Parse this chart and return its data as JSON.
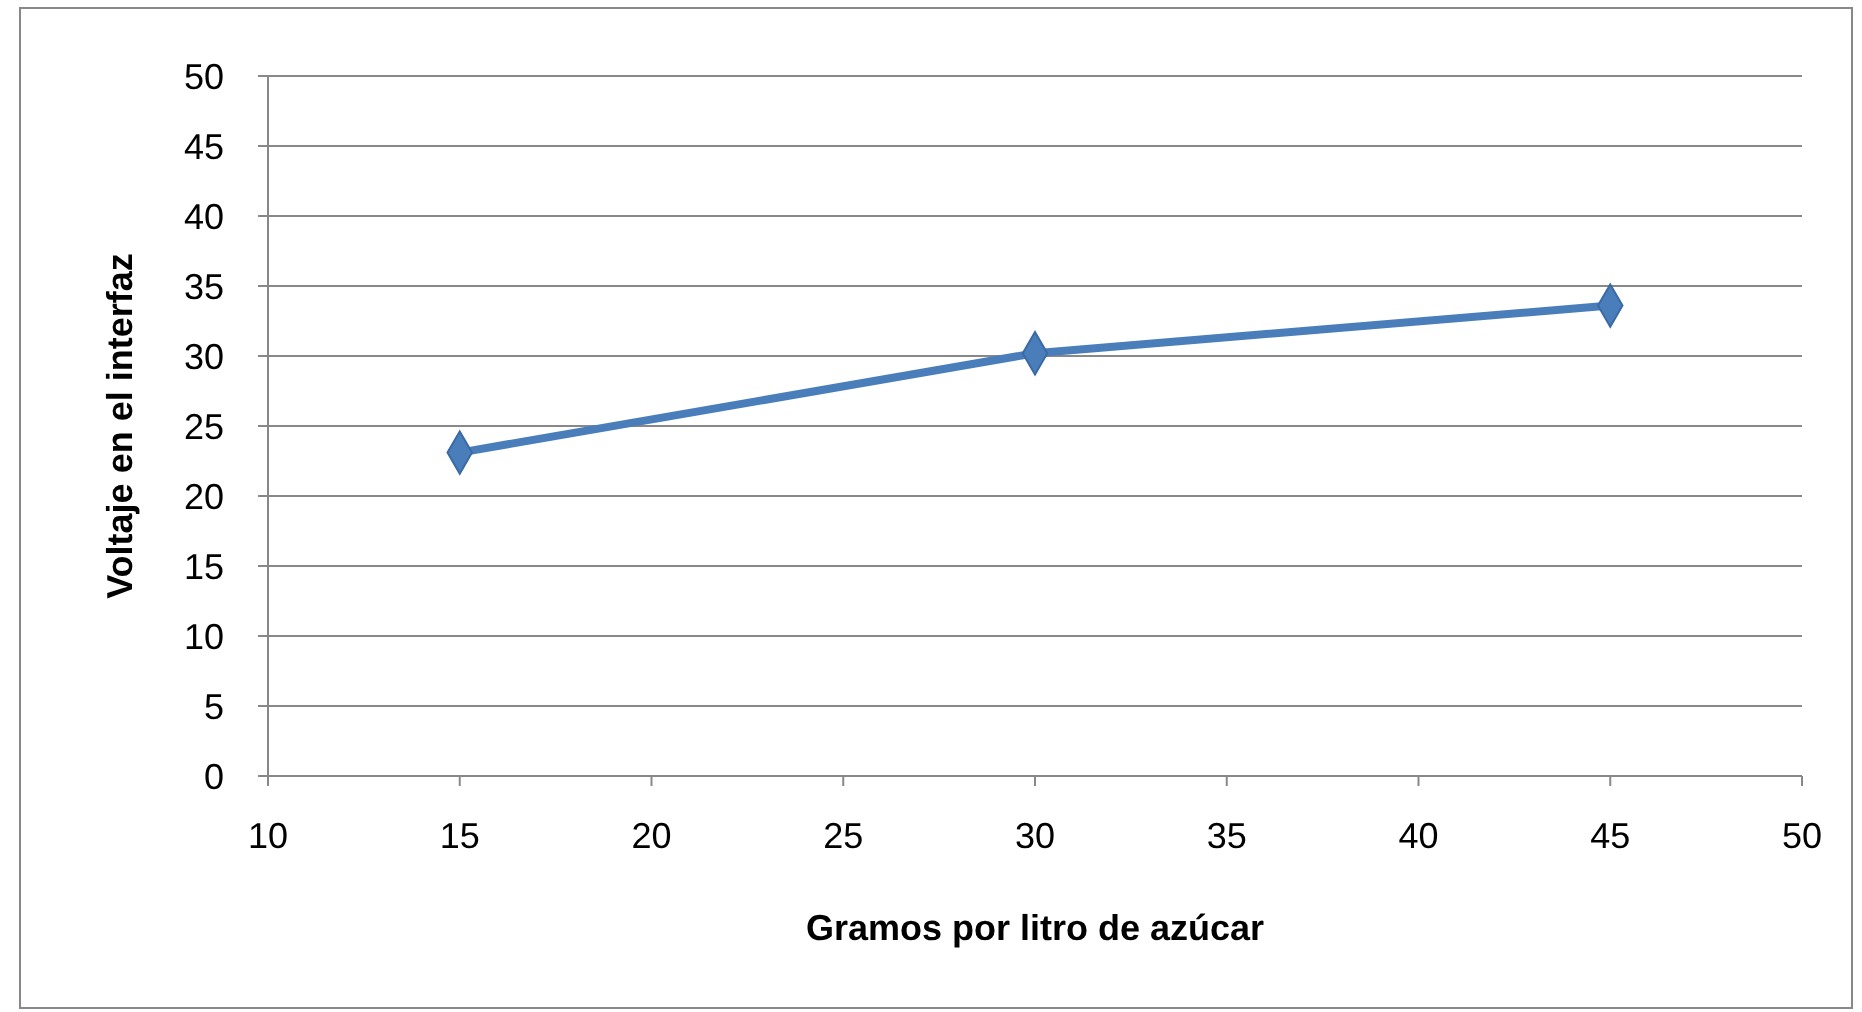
{
  "chart_data": {
    "type": "line",
    "xlabel": "Gramos por litro de azúcar",
    "ylabel": "Voltaje en el interfaz",
    "x": [
      15,
      30,
      45
    ],
    "series": [
      {
        "color": "#4a7ebb",
        "values": [
          23.1,
          30.2,
          33.6
        ]
      }
    ],
    "xlim": [
      10,
      50
    ],
    "xticks": [
      10,
      15,
      20,
      25,
      30,
      35,
      40,
      45,
      50
    ],
    "ylim": [
      0,
      50
    ],
    "yticks": [
      0,
      5,
      10,
      15,
      20,
      25,
      30,
      35,
      40,
      45,
      50
    ],
    "grid": "y",
    "marker": "diamond",
    "line_style": "solid"
  }
}
